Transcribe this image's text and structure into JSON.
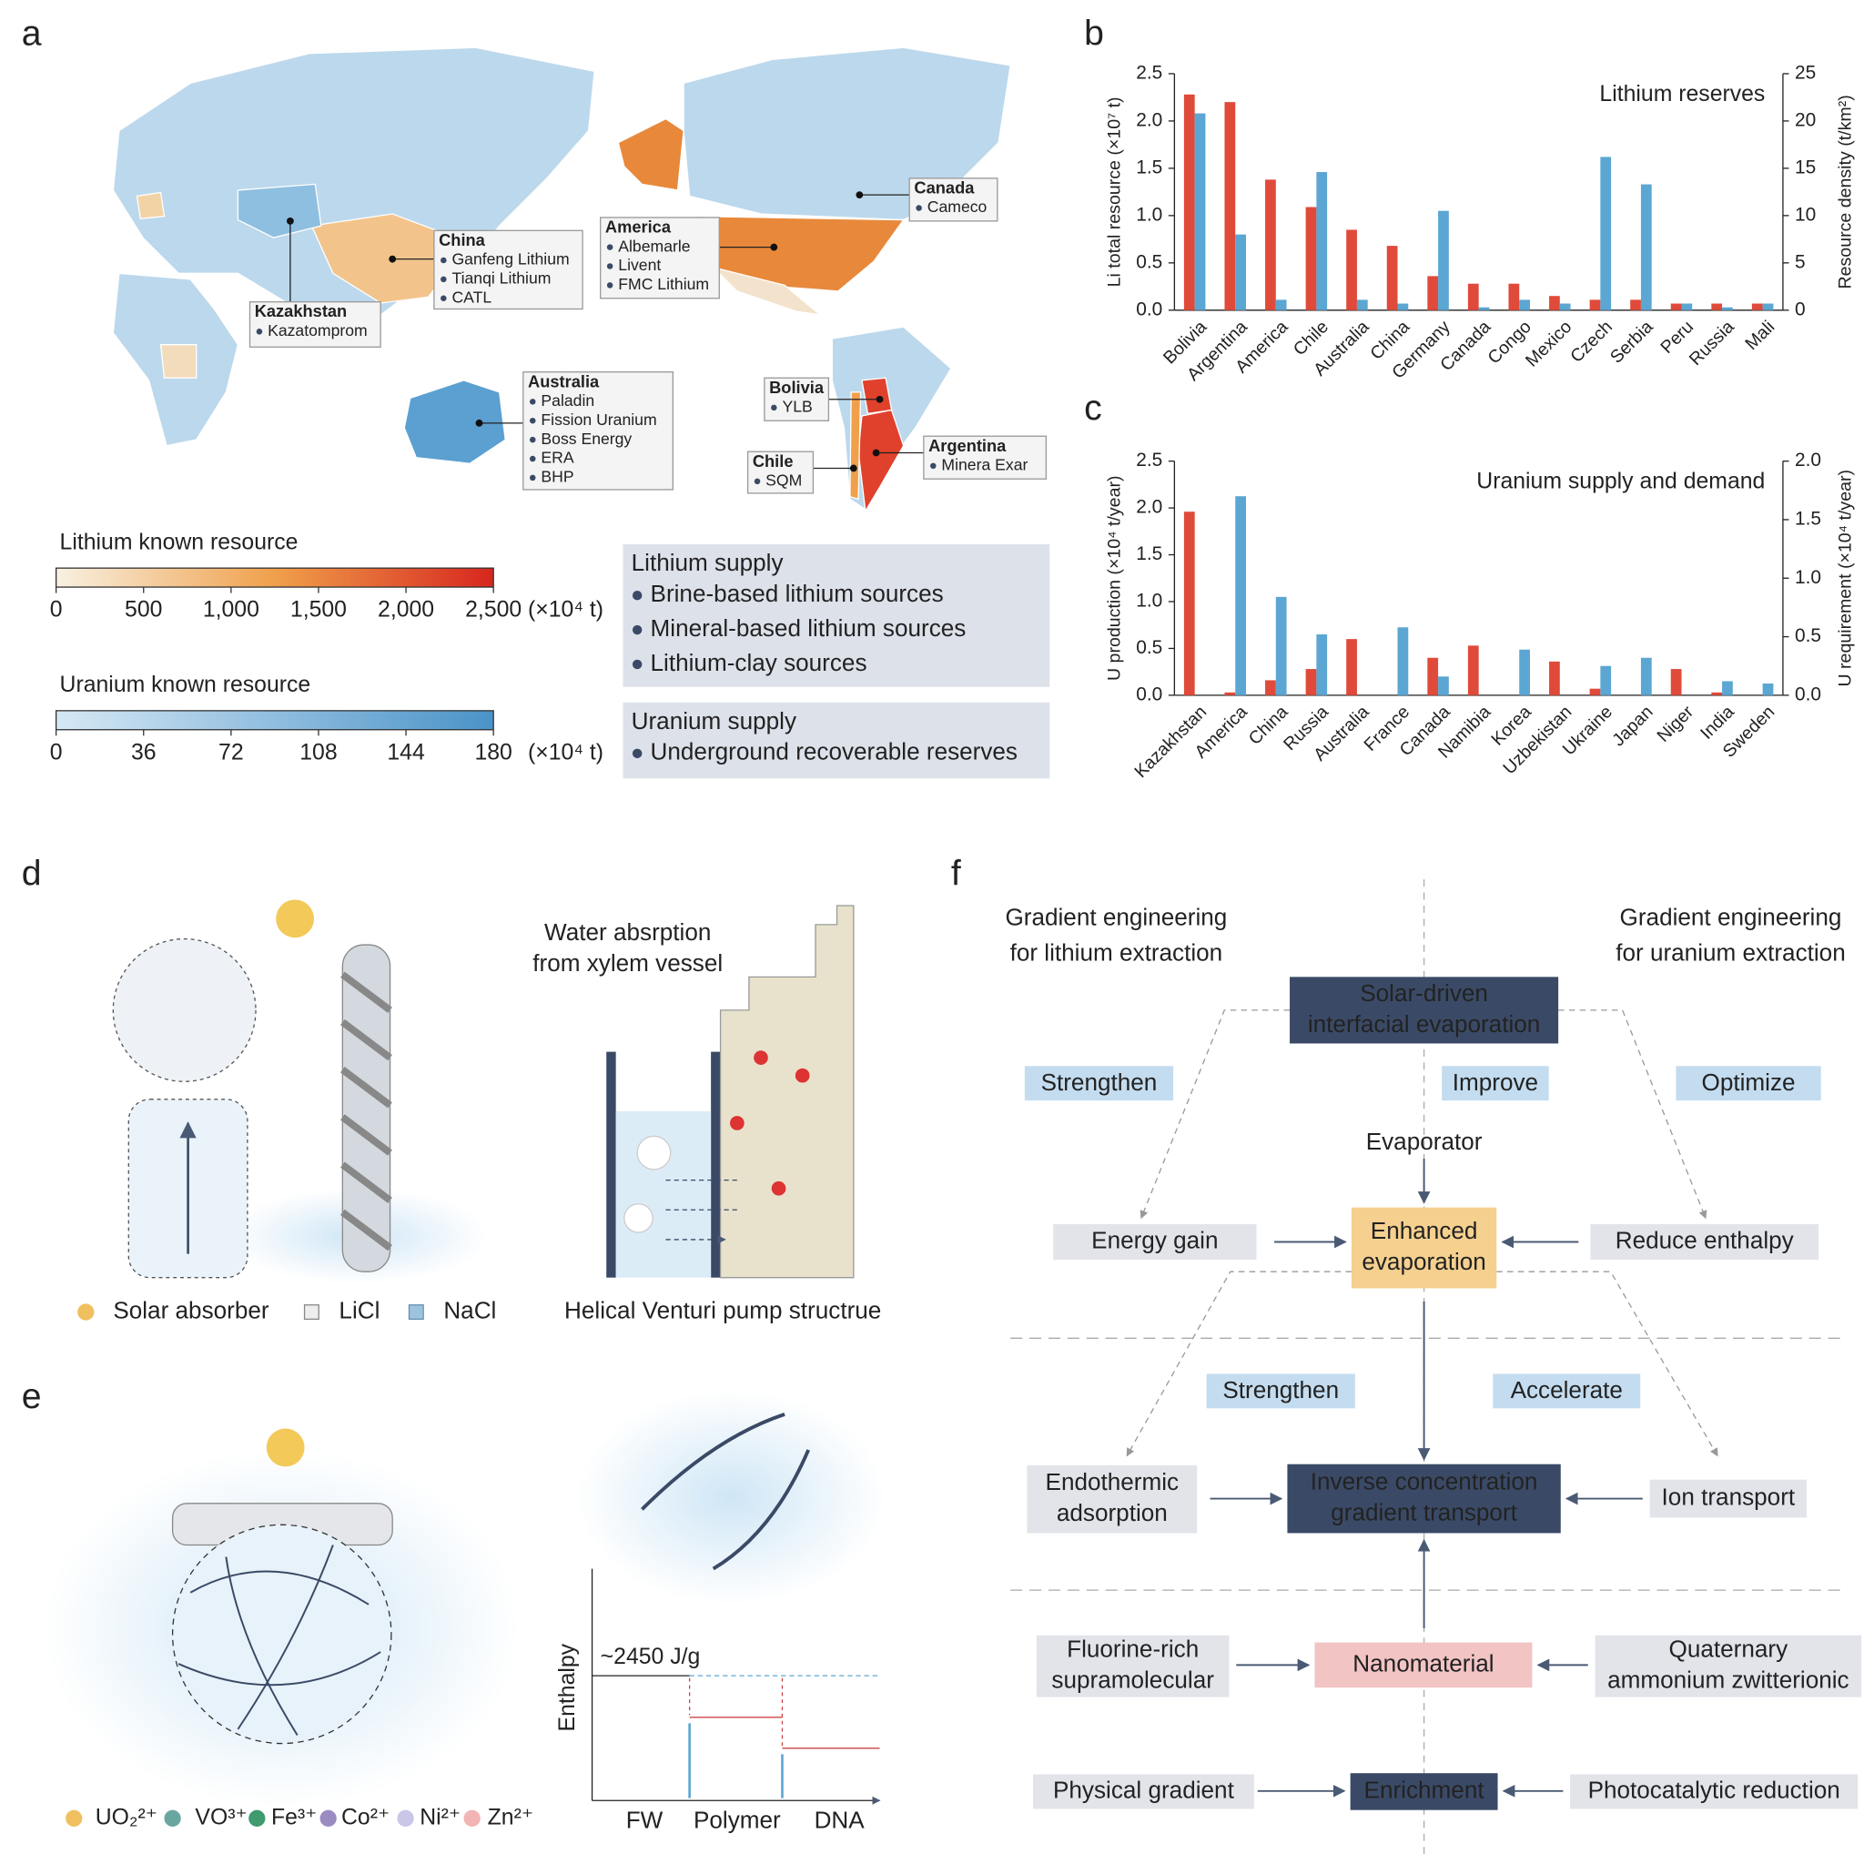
{
  "panel_labels": [
    "a",
    "b",
    "c",
    "d",
    "e",
    "f"
  ],
  "map": {
    "callouts": [
      {
        "country": "China",
        "items": [
          "Ganfeng Lithium",
          "Tianqi Lithium",
          "CATL"
        ]
      },
      {
        "country": "Kazakhstan",
        "items": [
          "Kazatomprom"
        ]
      },
      {
        "country": "America",
        "items": [
          "Albemarle",
          "Livent",
          "FMC Lithium"
        ]
      },
      {
        "country": "Canada",
        "items": [
          "Cameco"
        ]
      },
      {
        "country": "Australia",
        "items": [
          "Paladin",
          "Fission Uranium",
          "Boss Energy",
          "ERA",
          "BHP"
        ]
      },
      {
        "country": "Bolivia",
        "items": [
          "YLB"
        ]
      },
      {
        "country": "Chile",
        "items": [
          "SQM"
        ]
      },
      {
        "country": "Argentina",
        "items": [
          "Minera Exar"
        ]
      }
    ],
    "scales": [
      {
        "title": "Lithium known resource",
        "range": [
          0,
          2500
        ],
        "ticks": [
          0,
          500,
          {
            "value": 1000,
            "label": "1,000"
          },
          {
            "value": 1500,
            "label": "1,500"
          },
          {
            "value": 2000,
            "label": "2,000"
          },
          {
            "value": 2500,
            "label": "2,500"
          }
        ],
        "unit": "(×10⁴ t)",
        "colors": [
          "#f8f1e2",
          "#f0a04b",
          "#d7261e"
        ]
      },
      {
        "title": "Uranium known resource",
        "range": [
          0,
          180
        ],
        "ticks": [
          0,
          36,
          72,
          108,
          144,
          180
        ],
        "unit": "(×10⁴ t)",
        "colors": [
          "#d6e8f5",
          "#4a93c8"
        ]
      }
    ],
    "supply": [
      {
        "title": "Lithium supply",
        "items": [
          "Brine-based lithium sources",
          "Mineral-based lithium sources",
          "Lithium-clay sources"
        ]
      },
      {
        "title": "Uranium supply",
        "items": [
          "Underground recoverable reserves"
        ]
      }
    ]
  },
  "chart_data": [
    {
      "type": "bar",
      "title": "Lithium reserves",
      "y_label": "Li total resource (×10⁷ t)",
      "y2_label": "Resource density (t/km²)",
      "categories": [
        "Bolivia",
        "Argentina",
        "America",
        "Chile",
        "Australia",
        "China",
        "Germany",
        "Canada",
        "Congo",
        "Mexico",
        "Czech",
        "Serbia",
        "Peru",
        "Russia",
        "Mali"
      ],
      "series": [
        {
          "name": "Li total resource",
          "color": "#e04a3a",
          "values": [
            2.28,
            2.2,
            1.38,
            1.09,
            0.85,
            0.68,
            0.36,
            0.28,
            0.28,
            0.15,
            0.11,
            0.11,
            0.07,
            0.07,
            0.07
          ]
        },
        {
          "name": "Resource density",
          "color": "#5ba6d2",
          "axis": "y2",
          "values": [
            20.8,
            8,
            1.1,
            14.6,
            1.1,
            0.7,
            10.5,
            0.3,
            1.1,
            0.7,
            16.2,
            13.3,
            0.7,
            0.3,
            0.7
          ]
        }
      ],
      "ylim": [
        0,
        2.5
      ],
      "yticks": [
        {
          "value": 0,
          "label": "0.0"
        },
        0.5,
        {
          "value": 1,
          "label": "1.0"
        },
        1.5,
        {
          "value": 2,
          "label": "2.0"
        },
        2.5
      ],
      "y2lim": [
        0,
        25
      ],
      "y2ticks": [
        0,
        5,
        10,
        15,
        20,
        25
      ]
    },
    {
      "type": "bar",
      "title": "Uranium supply and demand",
      "y_label": "U production (×10⁴ t/year)",
      "y2_label": "U requirement (×10⁴ t/year)",
      "categories": [
        "Kazakhstan",
        "America",
        "China",
        "Russia",
        "Australia",
        "France",
        "Canada",
        "Namibia",
        "Korea",
        "Uzbekistan",
        "Ukraine",
        "Japan",
        "Niger",
        "India",
        "Sweden"
      ],
      "series": [
        {
          "name": "U production",
          "color": "#e04a3a",
          "values": [
            1.96,
            0.03,
            0.16,
            0.28,
            0.6,
            null,
            0.4,
            0.53,
            null,
            0.36,
            0.07,
            null,
            0.28,
            0.03,
            null
          ]
        },
        {
          "name": "U requirement",
          "color": "#5ba6d2",
          "axis": "y2",
          "values": [
            null,
            1.7,
            0.84,
            0.52,
            null,
            0.58,
            0.16,
            null,
            0.39,
            null,
            0.25,
            0.32,
            null,
            0.12,
            0.1
          ]
        }
      ],
      "ylim": [
        0,
        2.5
      ],
      "yticks": [
        {
          "value": 0,
          "label": "0.0"
        },
        0.5,
        {
          "value": 1,
          "label": "1.0"
        },
        1.5,
        {
          "value": 2,
          "label": "2.0"
        },
        2.5
      ],
      "y2lim": [
        0,
        2
      ],
      "y2ticks": [
        {
          "value": 0,
          "label": "0.0"
        },
        0.5,
        {
          "value": 1,
          "label": "1.0"
        },
        1.5,
        {
          "value": 2,
          "label": "2.0"
        }
      ]
    }
  ],
  "panel_d": {
    "water_label": [
      "Water absrption",
      "from xylem vessel"
    ],
    "legend": [
      "Solar absorber",
      "LiCl",
      "NaCl"
    ],
    "caption": "Helical Venturi pump structrue"
  },
  "panel_e": {
    "legend": [
      "UO₂²⁺",
      "VO³⁺",
      "Fe³⁺",
      "Co²⁺",
      "Ni²⁺",
      "Zn²⁺"
    ],
    "axis_label": "Enthalpy",
    "enthalpy": "~2450 J/g",
    "x_labels": [
      "FW",
      "Polymer",
      "DNA"
    ]
  },
  "panel_f": {
    "left_heading": [
      "Gradient engineering",
      "for lithium extraction"
    ],
    "right_heading": [
      "Gradient engineering",
      "for uranium extraction"
    ],
    "evaporator": "Evaporator",
    "actions": [
      "Strengthen",
      "Improve",
      "Optimize",
      "Strengthen",
      "Accelerate"
    ],
    "nodes": [
      {
        "label": [
          "Solar-driven",
          "interfacial evaporation"
        ],
        "style": "dark"
      },
      {
        "label": [
          "Energy gain"
        ],
        "style": "gray"
      },
      {
        "label": [
          "Enhanced",
          "evaporation"
        ],
        "style": "yellow"
      },
      {
        "label": [
          "Reduce enthalpy"
        ],
        "style": "gray"
      },
      {
        "label": [
          "Endothermic",
          "adsorption"
        ],
        "style": "gray"
      },
      {
        "label": [
          "Inverse concentration",
          "gradient transport"
        ],
        "style": "dark"
      },
      {
        "label": [
          "Ion transport"
        ],
        "style": "gray"
      },
      {
        "label": [
          "Fluorine-rich",
          "supramolecular"
        ],
        "style": "gray"
      },
      {
        "label": [
          "Nanomaterial"
        ],
        "style": "pink"
      },
      {
        "label": [
          "Quaternary",
          "ammonium zwitterionic"
        ],
        "style": "gray"
      },
      {
        "label": [
          "Physical gradient"
        ],
        "style": "gray"
      },
      {
        "label": [
          "Enrichment"
        ],
        "style": "dark"
      },
      {
        "label": [
          "Photocatalytic reduction"
        ],
        "style": "gray"
      }
    ]
  }
}
